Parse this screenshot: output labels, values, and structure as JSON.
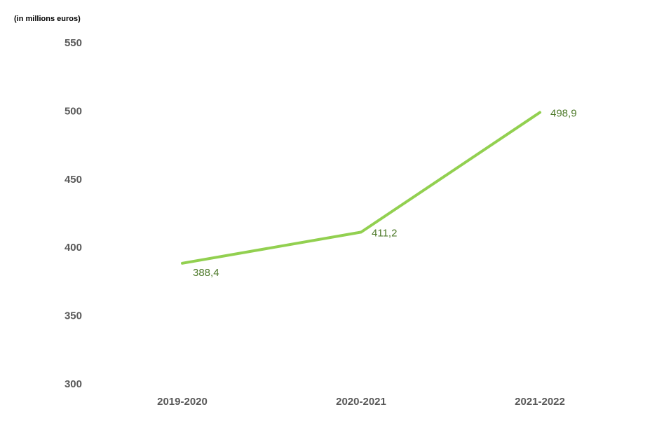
{
  "chart_data": {
    "type": "line",
    "ylabel": "(in millions euros)",
    "categories": [
      "2019-2020",
      "2020-2021",
      "2021-2022"
    ],
    "series": [
      {
        "values": [
          388.4,
          411.2,
          498.9
        ]
      }
    ],
    "data_labels": [
      "388,4",
      "411,2",
      "498,9"
    ],
    "y_ticks": [
      550,
      500,
      450,
      400,
      350,
      300
    ],
    "ylim": [
      300,
      550
    ],
    "grid": false,
    "legend": "none",
    "colors": {
      "line": "#92d050",
      "data_label": "#4e7a2a",
      "tick": "#595959"
    }
  }
}
